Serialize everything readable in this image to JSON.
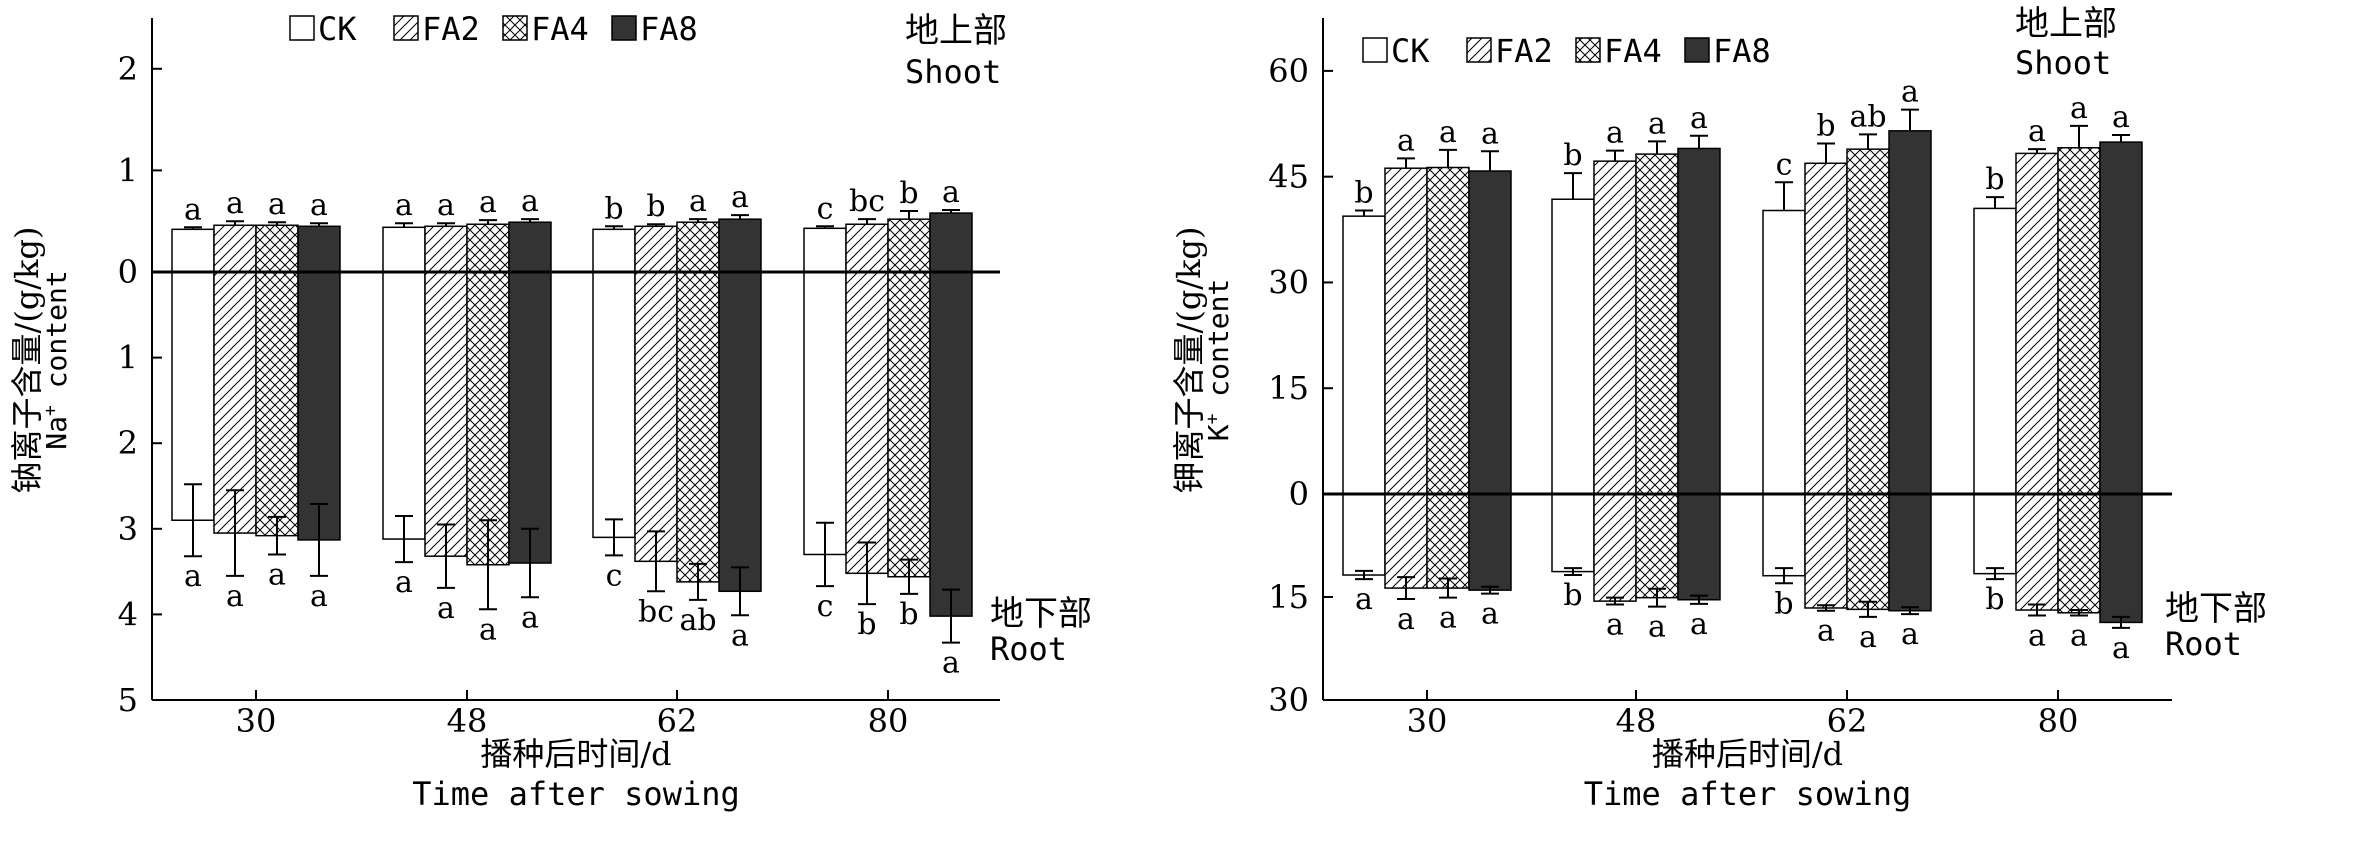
{
  "colors": {
    "CK": "#ffffff",
    "FA2": "hatch",
    "FA4": "crosshatch",
    "FA8": "#333333",
    "axis": "#000000"
  },
  "legend_labels": [
    "CK",
    "FA2",
    "FA4",
    "FA8"
  ],
  "chart_data": [
    {
      "type": "bar",
      "subtype": "mirrored-bar",
      "categories": [
        "30",
        "48",
        "62",
        "80"
      ],
      "xlabel_cn": "播种后时间/d",
      "xlabel_en": "Time after sowing",
      "ylabel_cn": "钠离子含量/(g/kg)",
      "ylabel_en_prefix": "Na",
      "ylabel_en_sup": "+",
      "ylabel_en_suffix": " content",
      "top_label_cn": "地上部",
      "top_label_en": "Shoot",
      "bottom_label_cn": "地下部",
      "bottom_label_en": "Root",
      "top_ticks": [
        "2",
        "1",
        "0"
      ],
      "bottom_ticks": [
        "1",
        "2",
        "3",
        "4",
        "5"
      ],
      "top_range": [
        0,
        2.5
      ],
      "bottom_range": [
        0,
        5
      ],
      "shoot": [
        {
          "name": "CK",
          "values": [
            0.42,
            0.44,
            0.42,
            0.43
          ],
          "errors": [
            0.02,
            0.04,
            0.03,
            0.02
          ],
          "letters": [
            "a",
            "a",
            "b",
            "c"
          ]
        },
        {
          "name": "FA2",
          "values": [
            0.46,
            0.45,
            0.45,
            0.47
          ],
          "errors": [
            0.04,
            0.03,
            0.02,
            0.05
          ],
          "letters": [
            "a",
            "a",
            "b",
            "bc"
          ]
        },
        {
          "name": "FA4",
          "values": [
            0.46,
            0.47,
            0.49,
            0.52
          ],
          "errors": [
            0.03,
            0.04,
            0.03,
            0.08
          ],
          "letters": [
            "a",
            "a",
            "a",
            "b"
          ]
        },
        {
          "name": "FA8",
          "values": [
            0.45,
            0.49,
            0.52,
            0.58
          ],
          "errors": [
            0.03,
            0.03,
            0.04,
            0.03
          ],
          "letters": [
            "a",
            "a",
            "a",
            "a"
          ]
        }
      ],
      "root": [
        {
          "name": "CK",
          "values": [
            2.9,
            3.12,
            3.1,
            3.3
          ],
          "errors": [
            0.42,
            0.27,
            0.21,
            0.37
          ],
          "letters": [
            "a",
            "a",
            "c",
            "c"
          ]
        },
        {
          "name": "FA2",
          "values": [
            3.05,
            3.32,
            3.38,
            3.52
          ],
          "errors": [
            0.5,
            0.37,
            0.35,
            0.36
          ],
          "letters": [
            "a",
            "a",
            "bc",
            "b"
          ]
        },
        {
          "name": "FA4",
          "values": [
            3.08,
            3.42,
            3.62,
            3.56
          ],
          "errors": [
            0.22,
            0.52,
            0.21,
            0.2
          ],
          "letters": [
            "a",
            "a",
            "ab",
            "b"
          ]
        },
        {
          "name": "FA8",
          "values": [
            3.13,
            3.4,
            3.73,
            4.02
          ],
          "errors": [
            0.42,
            0.4,
            0.28,
            0.31
          ],
          "letters": [
            "a",
            "a",
            "a",
            "a"
          ]
        }
      ]
    },
    {
      "type": "bar",
      "subtype": "mirrored-bar",
      "categories": [
        "30",
        "48",
        "62",
        "80"
      ],
      "xlabel_cn": "播种后时间/d",
      "xlabel_en": "Time after sowing",
      "ylabel_cn": "钾离子含量/(g/kg)",
      "ylabel_en_prefix": "K",
      "ylabel_en_sup": "+",
      "ylabel_en_suffix": " content",
      "top_label_cn": "地上部",
      "top_label_en": "Shoot",
      "bottom_label_cn": "地下部",
      "bottom_label_en": "Root",
      "top_ticks": [
        "60",
        "45",
        "30",
        "15",
        "0"
      ],
      "bottom_ticks": [
        "15",
        "30"
      ],
      "top_range": [
        0,
        67.5
      ],
      "bottom_range": [
        0,
        30
      ],
      "shoot": [
        {
          "name": "CK",
          "values": [
            39.4,
            41.8,
            40.2,
            40.5
          ],
          "errors": [
            0.8,
            3.7,
            4.0,
            1.6
          ],
          "letters": [
            "b",
            "b",
            "c",
            "b"
          ]
        },
        {
          "name": "FA2",
          "values": [
            46.2,
            47.2,
            46.9,
            48.3
          ],
          "errors": [
            1.4,
            1.5,
            2.8,
            0.6
          ],
          "letters": [
            "a",
            "a",
            "b",
            "a"
          ]
        },
        {
          "name": "FA4",
          "values": [
            46.3,
            48.2,
            48.9,
            49.1
          ],
          "errors": [
            2.5,
            1.8,
            2.1,
            3.1
          ],
          "letters": [
            "a",
            "a",
            "ab",
            "a"
          ]
        },
        {
          "name": "FA8",
          "values": [
            45.8,
            49.0,
            51.5,
            49.9
          ],
          "errors": [
            2.8,
            1.8,
            3.0,
            1.0
          ],
          "letters": [
            "a",
            "a",
            "a",
            "a"
          ]
        }
      ],
      "root": [
        {
          "name": "CK",
          "values": [
            11.8,
            11.3,
            11.9,
            11.6
          ],
          "errors": [
            0.6,
            0.5,
            1.1,
            0.8
          ],
          "letters": [
            "a",
            "b",
            "b",
            "b"
          ]
        },
        {
          "name": "FA2",
          "values": [
            13.7,
            15.6,
            16.6,
            16.9
          ],
          "errors": [
            1.6,
            0.5,
            0.4,
            0.8
          ],
          "letters": [
            "a",
            "a",
            "a",
            "a"
          ]
        },
        {
          "name": "FA4",
          "values": [
            13.7,
            15.1,
            16.8,
            17.3
          ],
          "errors": [
            1.4,
            1.3,
            1.1,
            0.4
          ],
          "letters": [
            "a",
            "a",
            "a",
            "a"
          ]
        },
        {
          "name": "FA8",
          "values": [
            14.0,
            15.4,
            17.0,
            18.7
          ],
          "errors": [
            0.5,
            0.6,
            0.5,
            0.8
          ],
          "letters": [
            "a",
            "a",
            "a",
            "a"
          ]
        }
      ]
    }
  ]
}
